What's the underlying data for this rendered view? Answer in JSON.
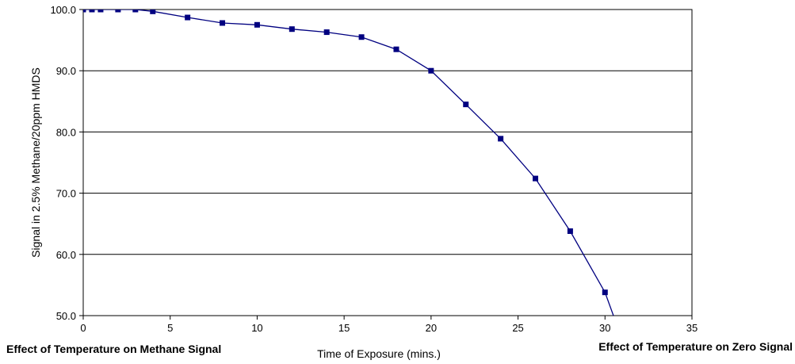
{
  "chart_data": {
    "type": "line",
    "ylabel": "Signal in 2.5% Methane/20ppm HMDS",
    "xlabel": "Time of Exposure (mins.)",
    "xlim": [
      0,
      35
    ],
    "ylim": [
      50,
      100
    ],
    "x_ticks": [
      "0",
      "5",
      "10",
      "15",
      "20",
      "25",
      "30",
      "35"
    ],
    "y_ticks": [
      "50.0",
      "60.0",
      "70.0",
      "80.0",
      "90.0",
      "100.0"
    ],
    "grid": "horizontal",
    "series": [
      {
        "color": "#000080",
        "marker": "square",
        "x": [
          0,
          0.5,
          1,
          2,
          3,
          4,
          6,
          8,
          10,
          12,
          14,
          16,
          18,
          20,
          22,
          24,
          26,
          28,
          30,
          31
        ],
        "y": [
          100.0,
          100.0,
          100.0,
          100.0,
          100.0,
          99.7,
          98.7,
          97.8,
          97.5,
          96.8,
          96.3,
          95.5,
          93.5,
          90.0,
          84.5,
          78.9,
          72.4,
          63.8,
          53.8,
          46.0
        ]
      }
    ]
  },
  "bottom_labels": {
    "left": "Effect of Temperature on Methane Signal",
    "right": "Effect of Temperature on Zero Signal"
  }
}
